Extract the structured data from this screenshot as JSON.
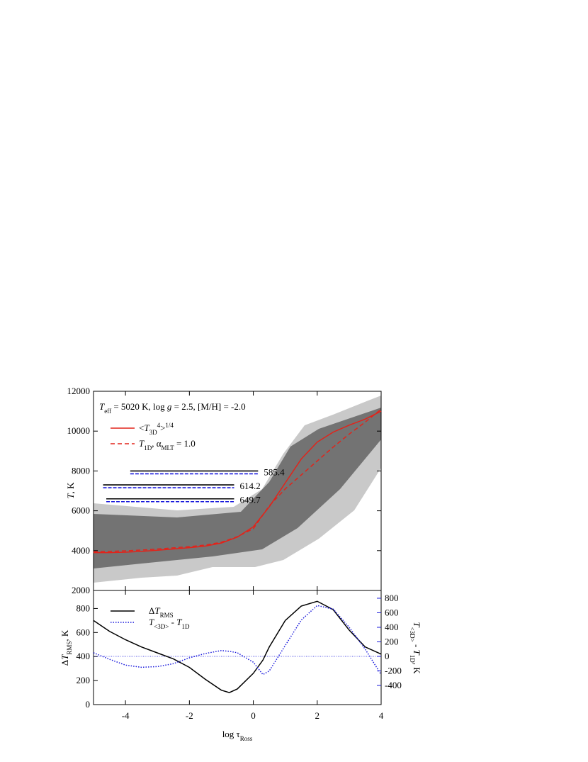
{
  "chart_data": [
    {
      "type": "line",
      "annotation": [
        "T",
        "eff",
        " = 5020 K, log ",
        "g",
        " = 2.5, [M/H] = -2.0"
      ],
      "ylabel": [
        "T",
        ", K"
      ],
      "xlim": [
        -5,
        4
      ],
      "xticks": [
        -4,
        -2,
        0,
        2,
        4
      ],
      "ylim": [
        2000,
        12000
      ],
      "yticks": [
        2000,
        4000,
        6000,
        8000,
        10000,
        12000
      ],
      "x": [
        -5,
        -4.5,
        -4,
        -3.5,
        -3,
        -2.5,
        -2,
        -1.5,
        -1,
        -0.5,
        0,
        0.5,
        1,
        1.5,
        2,
        2.5,
        3,
        3.5,
        4
      ],
      "series": [
        {
          "name": [
            "<",
            "T",
            "3D",
            "4",
            ">",
            "1/4"
          ],
          "color": "#e2231a",
          "style": "solid",
          "values": [
            3900,
            3900,
            3920,
            3960,
            4020,
            4080,
            4150,
            4230,
            4380,
            4680,
            5200,
            6200,
            7400,
            8600,
            9450,
            9950,
            10300,
            10600,
            11000
          ]
        },
        {
          "name": [
            "T",
            "1D",
            ", α",
            "MLT",
            " = 1.0"
          ],
          "color": "#e2231a",
          "style": "dashed",
          "values": [
            3950,
            3960,
            3990,
            4030,
            4080,
            4140,
            4200,
            4280,
            4420,
            4700,
            5100,
            6250,
            7100,
            7800,
            8500,
            9200,
            9850,
            10450,
            11100
          ]
        }
      ],
      "scale_bars": [
        {
          "label": 585.4,
          "x": [
            -3.85,
            0.15
          ],
          "y": 8000
        },
        {
          "label": 614.2,
          "x": [
            -4.7,
            -0.6
          ],
          "y": 7300
        },
        {
          "label": 649.7,
          "x": [
            -4.6,
            -0.6
          ],
          "y": 6600
        }
      ],
      "scale_bar_colors": [
        "#000000",
        "#1a1adc"
      ]
    },
    {
      "type": "line",
      "xlabel": [
        "log τ",
        "Ross"
      ],
      "ylabel": [
        "Δ",
        "T",
        "RMS",
        ", K"
      ],
      "y2label": [
        "T",
        "<3D>",
        " - ",
        "T",
        "1D",
        ", K"
      ],
      "xlim": [
        -5,
        4
      ],
      "xticks": [
        -4,
        -2,
        0,
        2,
        4
      ],
      "ylim": [
        0,
        950
      ],
      "yticks": [
        0,
        200,
        400,
        600,
        800
      ],
      "y2lim": [
        -663,
        907
      ],
      "y2ticks": [
        -400,
        -200,
        0,
        200,
        400,
        600,
        800
      ],
      "y2_color": "#1a1adc",
      "y2_zero_line": true,
      "x": [
        -5,
        -4.5,
        -4,
        -3.5,
        -3,
        -2.5,
        -2,
        -1.5,
        -1,
        -0.75,
        -0.5,
        0,
        0.3,
        0.5,
        1,
        1.5,
        2,
        2.5,
        3,
        3.5,
        4
      ],
      "series": [
        {
          "name": [
            "Δ",
            "T",
            "RMS"
          ],
          "color": "#000000",
          "style": "solid",
          "values": [
            700,
            610,
            540,
            480,
            430,
            380,
            310,
            210,
            120,
            100,
            130,
            260,
            370,
            480,
            700,
            820,
            860,
            790,
            620,
            480,
            420
          ]
        },
        {
          "name": [
            "T",
            "<3D>",
            " - ",
            "T",
            "1D"
          ],
          "color": "#1a1adc",
          "style": "dotted",
          "axis": "y2",
          "values": [
            50,
            -40,
            -120,
            -150,
            -140,
            -100,
            -20,
            40,
            80,
            70,
            50,
            -80,
            -250,
            -200,
            150,
            500,
            700,
            650,
            400,
            100,
            -250
          ]
        }
      ]
    }
  ]
}
